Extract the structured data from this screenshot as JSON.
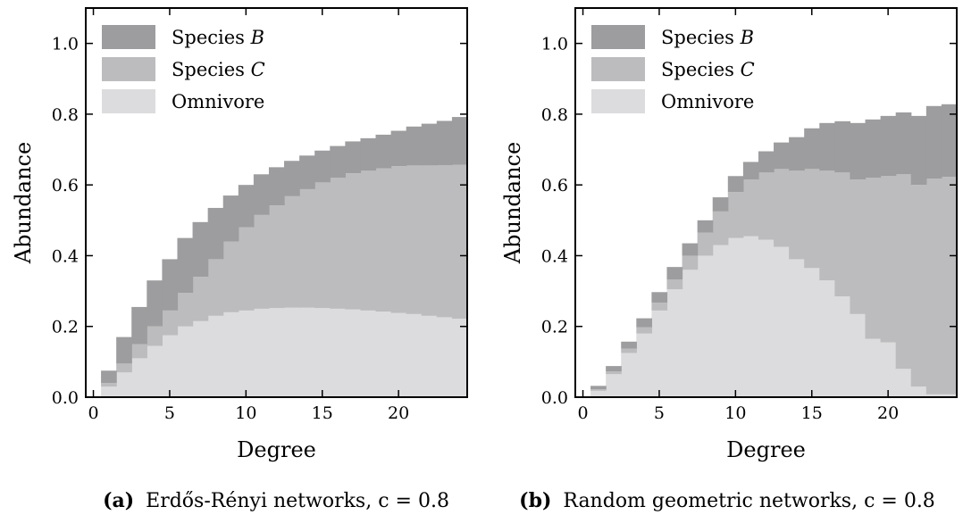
{
  "figure": {
    "captions": [
      {
        "letter": "(a)",
        "text": "Erdős-Rényi networks, c = 0.8"
      },
      {
        "letter": "(b)",
        "text": "Random geometric networks, c = 0.8"
      }
    ]
  },
  "colors": {
    "species_b": "#9d9d9f",
    "species_c": "#bcbcbe",
    "omnivore": "#dcdcde"
  },
  "chart_data": [
    {
      "type": "area",
      "title": "",
      "xlabel": "Degree",
      "ylabel": "Abundance",
      "xlim": [
        -0.5,
        24.5
      ],
      "ylim": [
        0,
        1.1
      ],
      "xticks": [
        0,
        5,
        10,
        15,
        20
      ],
      "yticks": [
        "0.0",
        "0.2",
        "0.4",
        "0.6",
        "0.8",
        "1.0"
      ],
      "legend": {
        "placement": "top-left",
        "entries": [
          "Species B",
          "Species C",
          "Omnivore"
        ]
      },
      "x": [
        1,
        2,
        3,
        4,
        5,
        6,
        7,
        8,
        9,
        10,
        11,
        12,
        13,
        14,
        15,
        16,
        17,
        18,
        19,
        20,
        21,
        22,
        23,
        24
      ],
      "series": [
        {
          "name": "Omnivore",
          "values": [
            0.03,
            0.07,
            0.11,
            0.145,
            0.175,
            0.2,
            0.215,
            0.23,
            0.24,
            0.245,
            0.25,
            0.252,
            0.253,
            0.253,
            0.252,
            0.25,
            0.248,
            0.245,
            0.242,
            0.238,
            0.235,
            0.23,
            0.226,
            0.222
          ]
        },
        {
          "name": "Species C",
          "values": [
            0.01,
            0.025,
            0.04,
            0.055,
            0.07,
            0.095,
            0.125,
            0.16,
            0.2,
            0.235,
            0.265,
            0.29,
            0.315,
            0.335,
            0.355,
            0.37,
            0.385,
            0.395,
            0.405,
            0.415,
            0.42,
            0.425,
            0.43,
            0.435
          ]
        },
        {
          "name": "Species B",
          "values": [
            0.035,
            0.075,
            0.105,
            0.13,
            0.145,
            0.155,
            0.155,
            0.145,
            0.13,
            0.12,
            0.115,
            0.108,
            0.1,
            0.095,
            0.09,
            0.09,
            0.09,
            0.092,
            0.095,
            0.1,
            0.11,
            0.118,
            0.125,
            0.135
          ]
        }
      ]
    },
    {
      "type": "area",
      "title": "",
      "xlabel": "Degree",
      "ylabel": "Abundance",
      "xlim": [
        -0.5,
        24.5
      ],
      "ylim": [
        0,
        1.1
      ],
      "xticks": [
        0,
        5,
        10,
        15,
        20
      ],
      "yticks": [
        "0.0",
        "0.2",
        "0.4",
        "0.6",
        "0.8",
        "1.0"
      ],
      "legend": {
        "placement": "top-left",
        "entries": [
          "Species B",
          "Species C",
          "Omnivore"
        ]
      },
      "x": [
        1,
        2,
        3,
        4,
        5,
        6,
        7,
        8,
        9,
        10,
        11,
        12,
        13,
        14,
        15,
        16,
        17,
        18,
        19,
        20,
        21,
        22,
        23,
        24
      ],
      "series": [
        {
          "name": "Omnivore",
          "values": [
            0.018,
            0.065,
            0.125,
            0.18,
            0.245,
            0.305,
            0.36,
            0.4,
            0.43,
            0.45,
            0.455,
            0.445,
            0.425,
            0.39,
            0.365,
            0.33,
            0.285,
            0.235,
            0.165,
            0.155,
            0.08,
            0.03,
            0.008,
            0.008
          ]
        },
        {
          "name": "Species C",
          "values": [
            0.004,
            0.008,
            0.012,
            0.018,
            0.022,
            0.028,
            0.04,
            0.065,
            0.095,
            0.13,
            0.16,
            0.19,
            0.22,
            0.25,
            0.28,
            0.31,
            0.35,
            0.38,
            0.455,
            0.47,
            0.55,
            0.57,
            0.61,
            0.615
          ]
        },
        {
          "name": "Species B",
          "values": [
            0.01,
            0.015,
            0.02,
            0.025,
            0.03,
            0.035,
            0.035,
            0.035,
            0.04,
            0.045,
            0.05,
            0.06,
            0.075,
            0.095,
            0.115,
            0.135,
            0.145,
            0.16,
            0.165,
            0.17,
            0.175,
            0.195,
            0.205,
            0.205
          ]
        }
      ]
    }
  ]
}
